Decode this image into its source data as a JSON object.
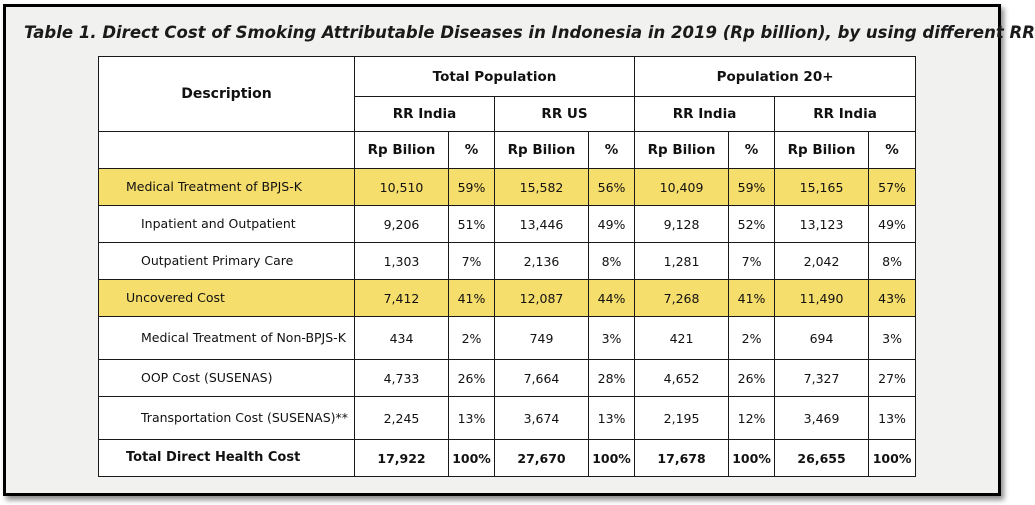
{
  "title": "Table 1. Direct Cost of Smoking Attributable Diseases in Indonesia in 2019 (Rp billion), by using different RR",
  "header": {
    "description": "Description",
    "groups": [
      "Total Population",
      "Population 20+"
    ],
    "rr": [
      "RR India",
      "RR US",
      "RR India",
      "RR India"
    ],
    "cols": [
      "Rp Bilion",
      "%",
      "Rp Bilion",
      "%",
      "Rp Bilion",
      "%",
      "Rp Bilion",
      "%"
    ]
  },
  "highlight_color": "#f6de6c",
  "rows": [
    {
      "label": "Medical Treatment of BPJS-K",
      "cells": [
        "10,510",
        "59%",
        "15,582",
        "56%",
        "10,409",
        "59%",
        "15,165",
        "57%"
      ]
    },
    {
      "label": "Inpatient and Outpatient",
      "cells": [
        "9,206",
        "51%",
        "13,446",
        "49%",
        "9,128",
        "52%",
        "13,123",
        "49%"
      ]
    },
    {
      "label": "Outpatient Primary Care",
      "cells": [
        "1,303",
        "7%",
        "2,136",
        "8%",
        "1,281",
        "7%",
        "2,042",
        "8%"
      ]
    },
    {
      "label": "Uncovered Cost",
      "cells": [
        "7,412",
        "41%",
        "12,087",
        "44%",
        "7,268",
        "41%",
        "11,490",
        "43%"
      ]
    },
    {
      "label": "Medical Treatment of Non-BPJS-K",
      "cells": [
        "434",
        "2%",
        "749",
        "3%",
        "421",
        "2%",
        "694",
        "3%"
      ]
    },
    {
      "label": "OOP Cost (SUSENAS)",
      "cells": [
        "4,733",
        "26%",
        "7,664",
        "28%",
        "4,652",
        "26%",
        "7,327",
        "27%"
      ]
    },
    {
      "label": "Transportation Cost (SUSENAS)**",
      "cells": [
        "2,245",
        "13%",
        "3,674",
        "13%",
        "2,195",
        "12%",
        "3,469",
        "13%"
      ]
    },
    {
      "label": "Total Direct Health Cost",
      "cells": [
        "17,922",
        "100%",
        "27,670",
        "100%",
        "17,678",
        "100%",
        "26,655",
        "100%"
      ]
    }
  ]
}
